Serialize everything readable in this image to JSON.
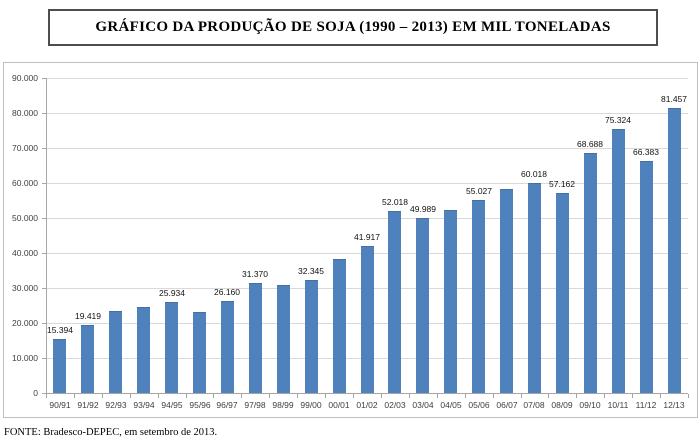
{
  "title": "GRÁFICO DA PRODUÇÃO DE SOJA (1990 – 2013) EM MIL TONELADAS",
  "colors": {
    "bar": "#4f81bd",
    "bar_border": "#44719f",
    "grid": "#d9d9d9",
    "axis": "#a6a6a6",
    "chart_border": "#bfbfbf",
    "title_border": "#4d4d4d"
  },
  "chart_data": {
    "type": "bar",
    "title": "GRÁFICO DA PRODUÇÃO DE SOJA (1990 – 2013) EM MIL TONELADAS",
    "source": "FONTE: Bradesco-DEPEC, em setembro de 2013.",
    "unit": "mil toneladas",
    "categories": [
      "90/91",
      "91/92",
      "92/93",
      "93/94",
      "94/95",
      "95/96",
      "96/97",
      "97/98",
      "98/99",
      "99/00",
      "00/01",
      "01/02",
      "02/03",
      "03/04",
      "04/05",
      "05/06",
      "06/07",
      "07/08",
      "08/09",
      "09/10",
      "10/11",
      "11/12",
      "12/13"
    ],
    "values": [
      15394,
      19419,
      23500,
      24600,
      25934,
      23200,
      26160,
      31370,
      30800,
      32345,
      38200,
      41917,
      52018,
      49989,
      52400,
      55027,
      58400,
      60018,
      57162,
      68688,
      75324,
      66383,
      81457
    ],
    "data_labels": [
      "15.394",
      "19.419",
      null,
      null,
      "25.934",
      null,
      "26.160",
      "31.370",
      null,
      "32.345",
      null,
      "41.917",
      "52.018",
      "49.989",
      null,
      "55.027",
      null,
      "60.018",
      "57.162",
      "68.688",
      "75.324",
      "66.383",
      "81.457"
    ],
    "ylim": [
      0,
      90000
    ],
    "ytick_values": [
      0,
      10000,
      20000,
      30000,
      40000,
      50000,
      60000,
      70000,
      80000,
      90000
    ],
    "ytick_labels": [
      "0",
      "10.000",
      "20.000",
      "30.000",
      "40.000",
      "50.000",
      "60.000",
      "70.000",
      "80.000",
      "90.000"
    ],
    "grid": true,
    "legend": false
  }
}
